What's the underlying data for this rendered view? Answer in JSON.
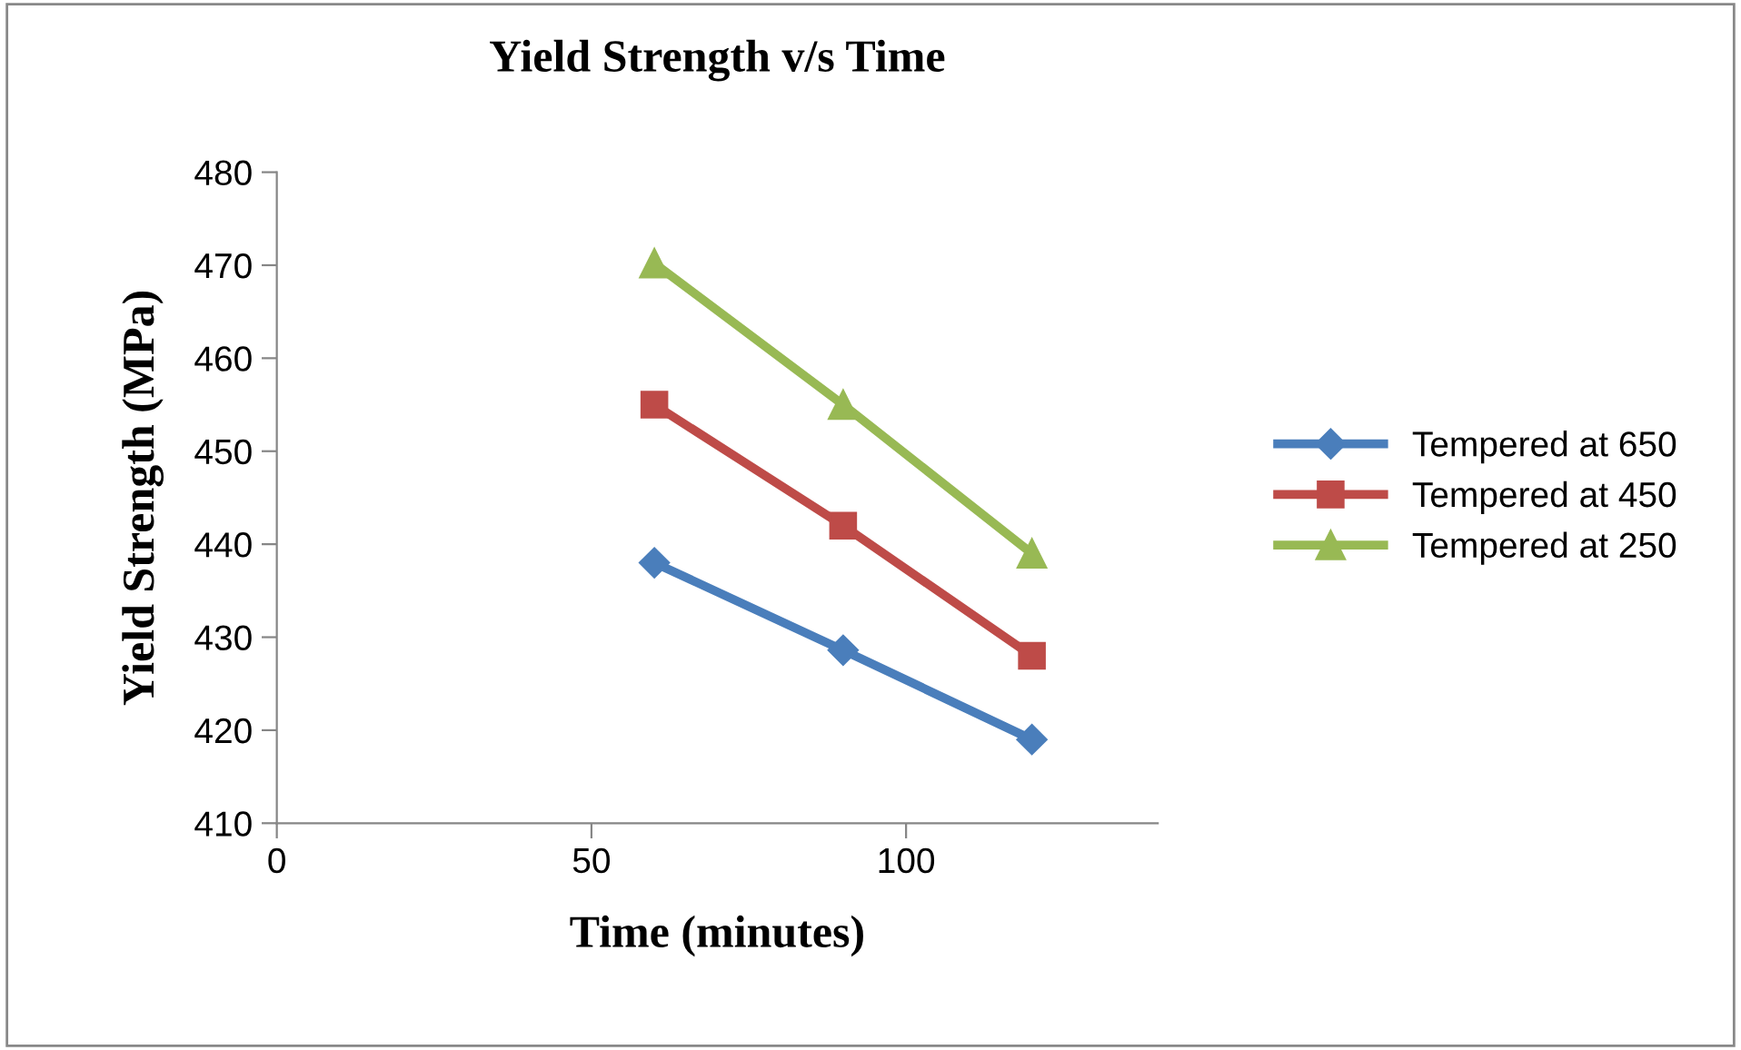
{
  "chart_data": {
    "type": "line",
    "title": "Yield Strength v/s Time",
    "xlabel": "Time (minutes)",
    "ylabel": "Yield Strength (MPa)",
    "x": [
      60,
      90,
      120
    ],
    "series": [
      {
        "name": "Tempered at 650",
        "color": "#4a7ebb",
        "marker": "diamond",
        "values": [
          438,
          428.6,
          419
        ]
      },
      {
        "name": "Tempered at 450",
        "color": "#be4b48",
        "marker": "square",
        "values": [
          455,
          442,
          428
        ]
      },
      {
        "name": "Tempered at 250",
        "color": "#98b954",
        "marker": "triangle",
        "values": [
          470.2,
          455,
          439
        ]
      }
    ],
    "xlim": [
      0,
      140
    ],
    "xticks": [
      0,
      50,
      100
    ],
    "ylim": [
      410,
      480
    ],
    "yticks": [
      410,
      420,
      430,
      440,
      450,
      460,
      470,
      480
    ],
    "grid": false,
    "legend": "right",
    "line_style": "solid"
  }
}
